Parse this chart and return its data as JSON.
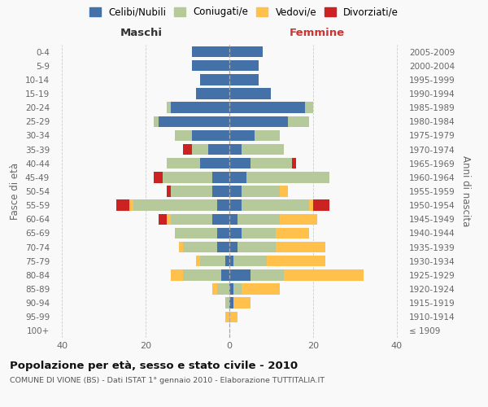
{
  "age_groups": [
    "100+",
    "95-99",
    "90-94",
    "85-89",
    "80-84",
    "75-79",
    "70-74",
    "65-69",
    "60-64",
    "55-59",
    "50-54",
    "45-49",
    "40-44",
    "35-39",
    "30-34",
    "25-29",
    "20-24",
    "15-19",
    "10-14",
    "5-9",
    "0-4"
  ],
  "birth_years": [
    "≤ 1909",
    "1910-1914",
    "1915-1919",
    "1920-1924",
    "1925-1929",
    "1930-1934",
    "1935-1939",
    "1940-1944",
    "1945-1949",
    "1950-1954",
    "1955-1959",
    "1960-1964",
    "1965-1969",
    "1970-1974",
    "1975-1979",
    "1980-1984",
    "1985-1989",
    "1990-1994",
    "1995-1999",
    "2000-2004",
    "2005-2009"
  ],
  "maschi_celibi": [
    0,
    0,
    0,
    0,
    2,
    1,
    3,
    3,
    4,
    3,
    4,
    4,
    7,
    5,
    9,
    17,
    14,
    8,
    7,
    9,
    9
  ],
  "maschi_coniugati": [
    0,
    0,
    1,
    3,
    9,
    6,
    8,
    10,
    10,
    20,
    10,
    12,
    8,
    4,
    4,
    1,
    1,
    0,
    0,
    0,
    0
  ],
  "maschi_vedovi": [
    0,
    1,
    0,
    1,
    3,
    1,
    1,
    0,
    1,
    1,
    0,
    0,
    0,
    0,
    0,
    0,
    0,
    0,
    0,
    0,
    0
  ],
  "maschi_divorziati": [
    0,
    0,
    0,
    0,
    0,
    0,
    0,
    0,
    2,
    3,
    1,
    2,
    0,
    2,
    0,
    0,
    0,
    0,
    0,
    0,
    0
  ],
  "femmine_nubili": [
    0,
    0,
    1,
    1,
    5,
    1,
    2,
    3,
    2,
    3,
    3,
    4,
    5,
    3,
    6,
    14,
    18,
    10,
    7,
    7,
    8
  ],
  "femmine_coniugate": [
    0,
    0,
    0,
    2,
    8,
    8,
    9,
    8,
    10,
    16,
    9,
    20,
    10,
    10,
    6,
    5,
    2,
    0,
    0,
    0,
    0
  ],
  "femmine_vedove": [
    0,
    2,
    4,
    9,
    19,
    14,
    12,
    8,
    9,
    1,
    2,
    0,
    0,
    0,
    0,
    0,
    0,
    0,
    0,
    0,
    0
  ],
  "femmine_divorziate": [
    0,
    0,
    0,
    0,
    0,
    0,
    0,
    0,
    0,
    4,
    0,
    0,
    1,
    0,
    0,
    0,
    0,
    0,
    0,
    0,
    0
  ],
  "color_celibi": "#4472a8",
  "color_coniugati": "#b5c99a",
  "color_vedovi": "#ffc04c",
  "color_divorziati": "#cc2222",
  "xlim": 42,
  "bar_height": 0.78,
  "title": "Popolazione per età, sesso e stato civile - 2010",
  "subtitle": "COMUNE DI VIONE (BS) - Dati ISTAT 1° gennaio 2010 - Elaborazione TUTTITALIA.IT",
  "legend_labels": [
    "Celibi/Nubili",
    "Coniugati/e",
    "Vedovi/e",
    "Divorziati/e"
  ],
  "bg_color": "#f9f9f9"
}
